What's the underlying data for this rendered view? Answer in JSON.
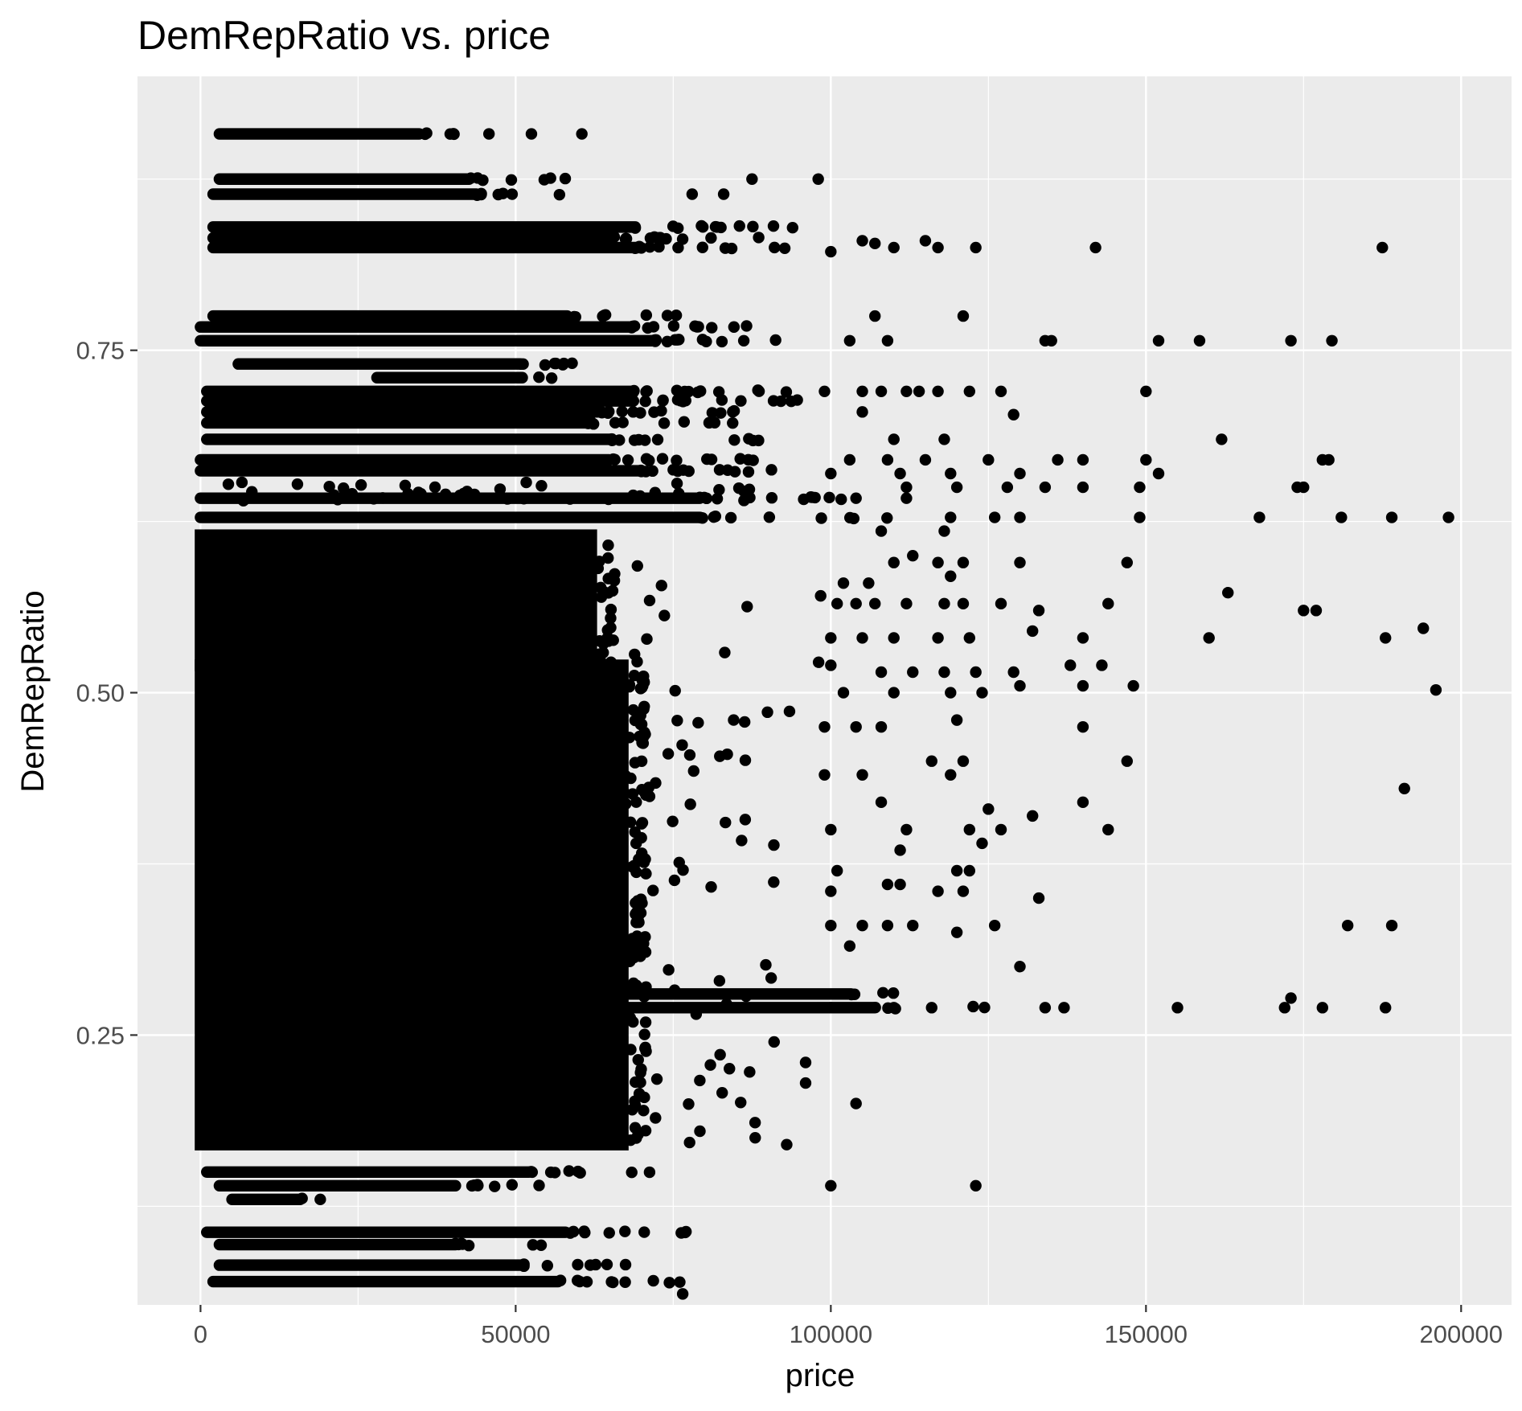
{
  "chart_data": {
    "type": "scatter",
    "title": "DemRepRatio vs. price",
    "xlabel": "price",
    "ylabel": "DemRepRatio",
    "xlim": [
      -10000,
      208000
    ],
    "ylim": [
      0.053,
      0.95
    ],
    "x_ticks": [
      0,
      50000,
      100000,
      150000,
      200000
    ],
    "x_tick_labels": [
      "0",
      "50000",
      "100000",
      "150000",
      "200000"
    ],
    "y_ticks": [
      0.25,
      0.5,
      0.75
    ],
    "y_tick_labels": [
      "0.25",
      "0.50",
      "0.75"
    ],
    "x_minor": [
      25000,
      75000,
      125000,
      175000
    ],
    "y_minor": [
      0.125,
      0.375,
      0.625,
      0.875
    ],
    "grid": true,
    "point_color": "#000000",
    "panel_color": "#ebebeb",
    "grid_color": "#ffffff",
    "dense_regions": [
      {
        "x": [
          0,
          67000
        ],
        "y": [
          0.17,
          0.52
        ],
        "density": 1.0
      },
      {
        "x": [
          0,
          62000
        ],
        "y": [
          0.52,
          0.615
        ],
        "density": 0.92
      },
      {
        "x": [
          1000,
          95000
        ],
        "y": [
          0.64,
          0.655
        ],
        "density": 0.75
      },
      {
        "x": [
          67000,
          88000
        ],
        "y": [
          0.17,
          0.6
        ],
        "density": 0.18
      },
      {
        "x": [
          88000,
          100000
        ],
        "y": [
          0.25,
          0.6
        ],
        "density": 0.05
      }
    ],
    "bands": [
      {
        "y": 0.908,
        "x_range": [
          3000,
          47000
        ],
        "density": 0.8
      },
      {
        "y": 0.875,
        "x_range": [
          3000,
          58000
        ],
        "density": 0.8
      },
      {
        "y": 0.864,
        "x_range": [
          2000,
          60000
        ],
        "density": 0.8
      },
      {
        "y": 0.84,
        "x_range": [
          2000,
          95000
        ],
        "density": 0.85
      },
      {
        "y": 0.832,
        "x_range": [
          2000,
          90000
        ],
        "density": 0.85
      },
      {
        "y": 0.825,
        "x_range": [
          2000,
          95000
        ],
        "density": 0.85
      },
      {
        "y": 0.775,
        "x_range": [
          2000,
          80000
        ],
        "density": 0.8
      },
      {
        "y": 0.767,
        "x_range": [
          0,
          95000
        ],
        "density": 0.85
      },
      {
        "y": 0.757,
        "x_range": [
          0,
          100000
        ],
        "density": 0.85
      },
      {
        "y": 0.74,
        "x_range": [
          6000,
          68000
        ],
        "density": 0.8
      },
      {
        "y": 0.73,
        "x_range": [
          28000,
          60000
        ],
        "density": 0.4
      },
      {
        "y": 0.72,
        "x_range": [
          1000,
          95000
        ],
        "density": 0.85
      },
      {
        "y": 0.713,
        "x_range": [
          1000,
          95000
        ],
        "density": 0.85
      },
      {
        "y": 0.705,
        "x_range": [
          1000,
          88000
        ],
        "density": 0.85
      },
      {
        "y": 0.697,
        "x_range": [
          1000,
          85000
        ],
        "density": 0.85
      },
      {
        "y": 0.685,
        "x_range": [
          1000,
          90000
        ],
        "density": 0.85
      },
      {
        "y": 0.67,
        "x_range": [
          0,
          90000
        ],
        "density": 0.85
      },
      {
        "y": 0.662,
        "x_range": [
          0,
          97000
        ],
        "density": 0.85
      },
      {
        "y": 0.642,
        "x_range": [
          0,
          110000
        ],
        "density": 0.7
      },
      {
        "y": 0.628,
        "x_range": [
          0,
          110000
        ],
        "density": 0.6
      },
      {
        "y": 0.28,
        "x_range": [
          60000,
          120000
        ],
        "density": 0.5
      },
      {
        "y": 0.27,
        "x_range": [
          60000,
          125000
        ],
        "density": 0.5
      },
      {
        "y": 0.15,
        "x_range": [
          1000,
          72000
        ],
        "density": 0.85
      },
      {
        "y": 0.14,
        "x_range": [
          3000,
          55000
        ],
        "density": 0.8
      },
      {
        "y": 0.13,
        "x_range": [
          5000,
          20000
        ],
        "density": 0.3
      },
      {
        "y": 0.106,
        "x_range": [
          1000,
          80000
        ],
        "density": 0.8
      },
      {
        "y": 0.097,
        "x_range": [
          3000,
          55000
        ],
        "density": 0.8
      },
      {
        "y": 0.082,
        "x_range": [
          3000,
          70000
        ],
        "density": 0.8
      },
      {
        "y": 0.07,
        "x_range": [
          2000,
          78000
        ],
        "density": 0.8
      }
    ],
    "points": [
      {
        "x": 52500,
        "y": 0.908
      },
      {
        "x": 60500,
        "y": 0.908
      },
      {
        "x": 87500,
        "y": 0.875
      },
      {
        "x": 98000,
        "y": 0.875
      },
      {
        "x": 78000,
        "y": 0.864
      },
      {
        "x": 83000,
        "y": 0.864
      },
      {
        "x": 100000,
        "y": 0.822
      },
      {
        "x": 105000,
        "y": 0.83
      },
      {
        "x": 107000,
        "y": 0.828
      },
      {
        "x": 110000,
        "y": 0.825
      },
      {
        "x": 115000,
        "y": 0.83
      },
      {
        "x": 117000,
        "y": 0.825
      },
      {
        "x": 123000,
        "y": 0.825
      },
      {
        "x": 142000,
        "y": 0.825
      },
      {
        "x": 187500,
        "y": 0.825
      },
      {
        "x": 107000,
        "y": 0.775
      },
      {
        "x": 121000,
        "y": 0.775
      },
      {
        "x": 103000,
        "y": 0.757
      },
      {
        "x": 109000,
        "y": 0.757
      },
      {
        "x": 134000,
        "y": 0.757
      },
      {
        "x": 135000,
        "y": 0.757
      },
      {
        "x": 152000,
        "y": 0.757
      },
      {
        "x": 158500,
        "y": 0.757
      },
      {
        "x": 173000,
        "y": 0.757
      },
      {
        "x": 179500,
        "y": 0.757
      },
      {
        "x": 99000,
        "y": 0.72
      },
      {
        "x": 105000,
        "y": 0.72
      },
      {
        "x": 108000,
        "y": 0.72
      },
      {
        "x": 112000,
        "y": 0.72
      },
      {
        "x": 114000,
        "y": 0.72
      },
      {
        "x": 117000,
        "y": 0.72
      },
      {
        "x": 122000,
        "y": 0.72
      },
      {
        "x": 127000,
        "y": 0.72
      },
      {
        "x": 150000,
        "y": 0.72
      },
      {
        "x": 105000,
        "y": 0.705
      },
      {
        "x": 129000,
        "y": 0.703
      },
      {
        "x": 110000,
        "y": 0.685
      },
      {
        "x": 118000,
        "y": 0.685
      },
      {
        "x": 162000,
        "y": 0.685
      },
      {
        "x": 103000,
        "y": 0.67
      },
      {
        "x": 109000,
        "y": 0.67
      },
      {
        "x": 115000,
        "y": 0.67
      },
      {
        "x": 125000,
        "y": 0.67
      },
      {
        "x": 136000,
        "y": 0.67
      },
      {
        "x": 140000,
        "y": 0.67
      },
      {
        "x": 150000,
        "y": 0.67
      },
      {
        "x": 178000,
        "y": 0.67
      },
      {
        "x": 179000,
        "y": 0.67
      },
      {
        "x": 100000,
        "y": 0.66
      },
      {
        "x": 111000,
        "y": 0.66
      },
      {
        "x": 119000,
        "y": 0.66
      },
      {
        "x": 130000,
        "y": 0.66
      },
      {
        "x": 152000,
        "y": 0.66
      },
      {
        "x": 112000,
        "y": 0.65
      },
      {
        "x": 120000,
        "y": 0.65
      },
      {
        "x": 128000,
        "y": 0.65
      },
      {
        "x": 134000,
        "y": 0.65
      },
      {
        "x": 140000,
        "y": 0.65
      },
      {
        "x": 149000,
        "y": 0.65
      },
      {
        "x": 174000,
        "y": 0.65
      },
      {
        "x": 175000,
        "y": 0.65
      },
      {
        "x": 104000,
        "y": 0.642
      },
      {
        "x": 112000,
        "y": 0.642
      },
      {
        "x": 119000,
        "y": 0.628
      },
      {
        "x": 126000,
        "y": 0.628
      },
      {
        "x": 130000,
        "y": 0.628
      },
      {
        "x": 149000,
        "y": 0.628
      },
      {
        "x": 168000,
        "y": 0.628
      },
      {
        "x": 181000,
        "y": 0.628
      },
      {
        "x": 189000,
        "y": 0.628
      },
      {
        "x": 198000,
        "y": 0.628
      },
      {
        "x": 108000,
        "y": 0.618
      },
      {
        "x": 118000,
        "y": 0.618
      },
      {
        "x": 110000,
        "y": 0.595
      },
      {
        "x": 113000,
        "y": 0.6
      },
      {
        "x": 117000,
        "y": 0.595
      },
      {
        "x": 121000,
        "y": 0.595
      },
      {
        "x": 130000,
        "y": 0.595
      },
      {
        "x": 147000,
        "y": 0.595
      },
      {
        "x": 102000,
        "y": 0.58
      },
      {
        "x": 106000,
        "y": 0.58
      },
      {
        "x": 119000,
        "y": 0.585
      },
      {
        "x": 163000,
        "y": 0.573
      },
      {
        "x": 101000,
        "y": 0.565
      },
      {
        "x": 104000,
        "y": 0.565
      },
      {
        "x": 107000,
        "y": 0.565
      },
      {
        "x": 112000,
        "y": 0.565
      },
      {
        "x": 118000,
        "y": 0.565
      },
      {
        "x": 121000,
        "y": 0.565
      },
      {
        "x": 127000,
        "y": 0.565
      },
      {
        "x": 133000,
        "y": 0.56
      },
      {
        "x": 144000,
        "y": 0.565
      },
      {
        "x": 175000,
        "y": 0.56
      },
      {
        "x": 177000,
        "y": 0.56
      },
      {
        "x": 100000,
        "y": 0.54
      },
      {
        "x": 105000,
        "y": 0.54
      },
      {
        "x": 110000,
        "y": 0.54
      },
      {
        "x": 117000,
        "y": 0.54
      },
      {
        "x": 122000,
        "y": 0.54
      },
      {
        "x": 132000,
        "y": 0.545
      },
      {
        "x": 140000,
        "y": 0.54
      },
      {
        "x": 160000,
        "y": 0.54
      },
      {
        "x": 188000,
        "y": 0.54
      },
      {
        "x": 194000,
        "y": 0.547
      },
      {
        "x": 100000,
        "y": 0.52
      },
      {
        "x": 108000,
        "y": 0.515
      },
      {
        "x": 113000,
        "y": 0.515
      },
      {
        "x": 118000,
        "y": 0.515
      },
      {
        "x": 123000,
        "y": 0.515
      },
      {
        "x": 129000,
        "y": 0.515
      },
      {
        "x": 138000,
        "y": 0.52
      },
      {
        "x": 143000,
        "y": 0.52
      },
      {
        "x": 102000,
        "y": 0.5
      },
      {
        "x": 110000,
        "y": 0.5
      },
      {
        "x": 119000,
        "y": 0.5
      },
      {
        "x": 124000,
        "y": 0.5
      },
      {
        "x": 130000,
        "y": 0.505
      },
      {
        "x": 140000,
        "y": 0.505
      },
      {
        "x": 148000,
        "y": 0.505
      },
      {
        "x": 196000,
        "y": 0.502
      },
      {
        "x": 99000,
        "y": 0.475
      },
      {
        "x": 104000,
        "y": 0.475
      },
      {
        "x": 108000,
        "y": 0.475
      },
      {
        "x": 120000,
        "y": 0.48
      },
      {
        "x": 140000,
        "y": 0.475
      },
      {
        "x": 116000,
        "y": 0.45
      },
      {
        "x": 121000,
        "y": 0.45
      },
      {
        "x": 147000,
        "y": 0.45
      },
      {
        "x": 99000,
        "y": 0.44
      },
      {
        "x": 105000,
        "y": 0.44
      },
      {
        "x": 119000,
        "y": 0.44
      },
      {
        "x": 191000,
        "y": 0.43
      },
      {
        "x": 108000,
        "y": 0.42
      },
      {
        "x": 125000,
        "y": 0.415
      },
      {
        "x": 140000,
        "y": 0.42
      },
      {
        "x": 132000,
        "y": 0.41
      },
      {
        "x": 100000,
        "y": 0.4
      },
      {
        "x": 112000,
        "y": 0.4
      },
      {
        "x": 122000,
        "y": 0.4
      },
      {
        "x": 127000,
        "y": 0.4
      },
      {
        "x": 144000,
        "y": 0.4
      },
      {
        "x": 111000,
        "y": 0.385
      },
      {
        "x": 124000,
        "y": 0.39
      },
      {
        "x": 101000,
        "y": 0.37
      },
      {
        "x": 120000,
        "y": 0.37
      },
      {
        "x": 122000,
        "y": 0.37
      },
      {
        "x": 100000,
        "y": 0.355
      },
      {
        "x": 109000,
        "y": 0.36
      },
      {
        "x": 111000,
        "y": 0.36
      },
      {
        "x": 117000,
        "y": 0.355
      },
      {
        "x": 121000,
        "y": 0.355
      },
      {
        "x": 133000,
        "y": 0.35
      },
      {
        "x": 100000,
        "y": 0.33
      },
      {
        "x": 105000,
        "y": 0.33
      },
      {
        "x": 109000,
        "y": 0.33
      },
      {
        "x": 113000,
        "y": 0.33
      },
      {
        "x": 120000,
        "y": 0.325
      },
      {
        "x": 126000,
        "y": 0.33
      },
      {
        "x": 182000,
        "y": 0.33
      },
      {
        "x": 189000,
        "y": 0.33
      },
      {
        "x": 103000,
        "y": 0.315
      },
      {
        "x": 130000,
        "y": 0.3
      },
      {
        "x": 100000,
        "y": 0.27
      },
      {
        "x": 110000,
        "y": 0.27
      },
      {
        "x": 116000,
        "y": 0.27
      },
      {
        "x": 134000,
        "y": 0.27
      },
      {
        "x": 137000,
        "y": 0.27
      },
      {
        "x": 155000,
        "y": 0.27
      },
      {
        "x": 172000,
        "y": 0.27
      },
      {
        "x": 173000,
        "y": 0.277
      },
      {
        "x": 178000,
        "y": 0.27
      },
      {
        "x": 188000,
        "y": 0.27
      },
      {
        "x": 91000,
        "y": 0.245
      },
      {
        "x": 96000,
        "y": 0.23
      },
      {
        "x": 96000,
        "y": 0.215
      },
      {
        "x": 104000,
        "y": 0.2
      },
      {
        "x": 88000,
        "y": 0.175
      },
      {
        "x": 93000,
        "y": 0.17
      },
      {
        "x": 100000,
        "y": 0.14
      },
      {
        "x": 123000,
        "y": 0.14
      },
      {
        "x": 76500,
        "y": 0.061
      },
      {
        "x": 19000,
        "y": 0.13
      }
    ]
  }
}
